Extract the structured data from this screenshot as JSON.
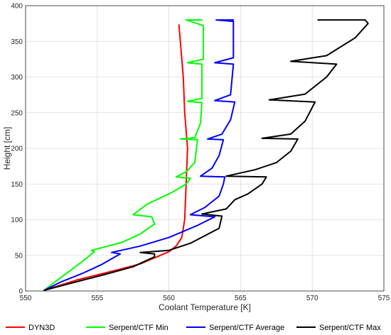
{
  "chart_data": {
    "type": "line",
    "xlabel": "Coolant Temperature [K]",
    "ylabel": "Height [cm]",
    "xlim": [
      550,
      575
    ],
    "ylim": [
      0,
      400
    ],
    "xticks": [
      "550",
      "555",
      "560",
      "565",
      "570",
      "575"
    ],
    "yticks": [
      "0",
      "50",
      "100",
      "150",
      "200",
      "250",
      "300",
      "350",
      "400"
    ],
    "grid": true,
    "legend_position": "bottom",
    "series": [
      {
        "name": "DYN3D",
        "color": "#ff0000",
        "points": [
          [
            551.3,
            1
          ],
          [
            553.5,
            15
          ],
          [
            555.5,
            25
          ],
          [
            558,
            38
          ],
          [
            560,
            55
          ],
          [
            560.5,
            63
          ],
          [
            560.9,
            75
          ],
          [
            561.1,
            100
          ],
          [
            561.2,
            150
          ],
          [
            561.3,
            200
          ],
          [
            561.1,
            250
          ],
          [
            561,
            300
          ],
          [
            560.8,
            350
          ],
          [
            560.7,
            373
          ]
        ]
      },
      {
        "name": "Serpent/CTF Min",
        "color": "#00ff00",
        "points": [
          [
            551.3,
            1
          ],
          [
            552,
            12
          ],
          [
            553,
            27
          ],
          [
            554,
            42
          ],
          [
            554.8,
            55
          ],
          [
            554.6,
            57
          ],
          [
            556.7,
            68
          ],
          [
            558,
            80
          ],
          [
            559,
            94
          ],
          [
            558.8,
            104
          ],
          [
            557.5,
            107
          ],
          [
            558.5,
            122
          ],
          [
            560.2,
            138
          ],
          [
            561.2,
            150
          ],
          [
            561.5,
            158
          ],
          [
            560.5,
            160
          ],
          [
            561.2,
            167
          ],
          [
            561.8,
            180
          ],
          [
            562,
            212
          ],
          [
            560.8,
            213
          ],
          [
            561.8,
            215
          ],
          [
            562.2,
            235
          ],
          [
            562.3,
            264
          ],
          [
            561.3,
            266
          ],
          [
            562.3,
            270
          ],
          [
            562.3,
            318
          ],
          [
            561.3,
            320
          ],
          [
            562.4,
            325
          ],
          [
            562.4,
            372
          ],
          [
            561.2,
            380
          ],
          [
            562.3,
            380
          ]
        ]
      },
      {
        "name": "Serpent/CTF Average",
        "color": "#0000ff",
        "points": [
          [
            551.3,
            1
          ],
          [
            552.5,
            13
          ],
          [
            554,
            25
          ],
          [
            555.3,
            37
          ],
          [
            556.6,
            52
          ],
          [
            556,
            54
          ],
          [
            558,
            63
          ],
          [
            560,
            75
          ],
          [
            562,
            92
          ],
          [
            563.2,
            104
          ],
          [
            561.5,
            107
          ],
          [
            562.5,
            117
          ],
          [
            563.5,
            133
          ],
          [
            563.8,
            150
          ],
          [
            563.9,
            160
          ],
          [
            562.2,
            161
          ],
          [
            563,
            172
          ],
          [
            563.5,
            190
          ],
          [
            563.8,
            212
          ],
          [
            562.7,
            213
          ],
          [
            563.7,
            220
          ],
          [
            564.3,
            240
          ],
          [
            564.6,
            265
          ],
          [
            563.2,
            267
          ],
          [
            564.3,
            275
          ],
          [
            564.5,
            318
          ],
          [
            563.2,
            320
          ],
          [
            564.5,
            327
          ],
          [
            564.5,
            378
          ],
          [
            563.3,
            380
          ],
          [
            564.5,
            380
          ]
        ]
      },
      {
        "name": "Serpent/CTF Max",
        "color": "#000000",
        "points": [
          [
            551.3,
            1
          ],
          [
            553,
            10
          ],
          [
            555.5,
            23
          ],
          [
            557.5,
            34
          ],
          [
            559,
            48
          ],
          [
            559,
            52
          ],
          [
            558,
            54
          ],
          [
            560,
            57
          ],
          [
            561.5,
            67
          ],
          [
            563.5,
            88
          ],
          [
            563.7,
            105
          ],
          [
            562.3,
            108
          ],
          [
            564,
            115
          ],
          [
            564.6,
            128
          ],
          [
            565.5,
            136
          ],
          [
            566,
            143
          ],
          [
            566.5,
            150
          ],
          [
            566.8,
            160
          ],
          [
            564,
            161
          ],
          [
            566,
            170
          ],
          [
            567.5,
            180
          ],
          [
            568.5,
            196
          ],
          [
            569,
            213
          ],
          [
            566.5,
            214
          ],
          [
            568.5,
            220
          ],
          [
            569.5,
            238
          ],
          [
            570.2,
            265
          ],
          [
            567,
            268
          ],
          [
            569.5,
            276
          ],
          [
            571,
            300
          ],
          [
            571.7,
            318
          ],
          [
            568.5,
            322
          ],
          [
            571,
            330
          ],
          [
            573,
            355
          ],
          [
            573.9,
            375
          ],
          [
            573.7,
            380
          ],
          [
            570.4,
            380
          ]
        ]
      }
    ]
  }
}
